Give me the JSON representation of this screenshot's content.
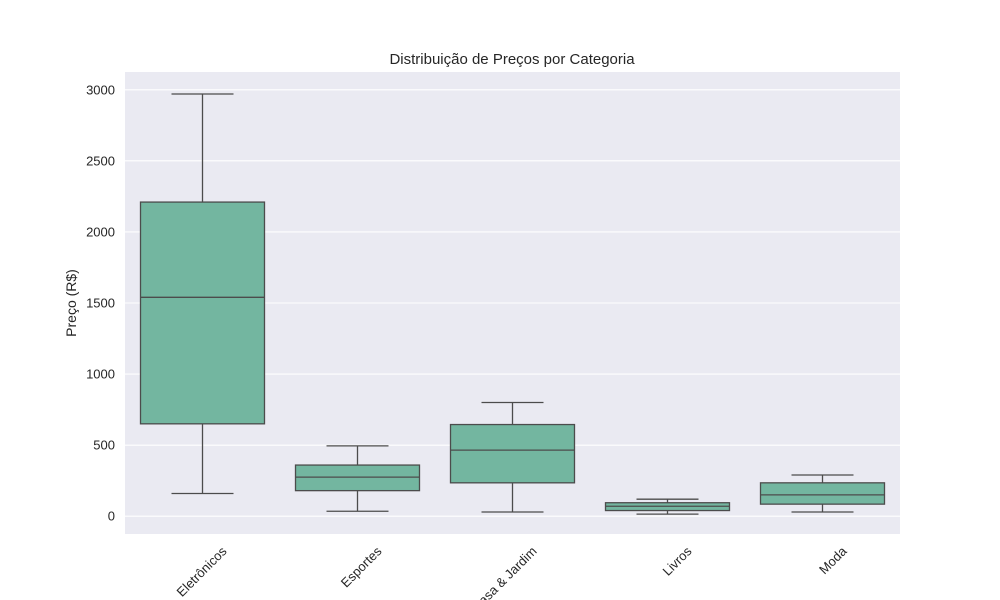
{
  "chart_data": {
    "type": "box",
    "title": "Distribuição de Preços por Categoria",
    "xlabel": "",
    "ylabel": "Preço (R$)",
    "ylim": [
      -125,
      3125
    ],
    "yticks": [
      0,
      500,
      1000,
      1500,
      2000,
      2500,
      3000
    ],
    "grid": true,
    "colors": {
      "plot_bg": "#eaeaf2",
      "grid": "#ffffff",
      "box_fill": "#73b6a0",
      "box_edge": "#4c4c4c"
    },
    "categories": [
      "Eletrônicos",
      "Esportes",
      "Casa & Jardim",
      "Livros",
      "Moda"
    ],
    "boxes": [
      {
        "category": "Eletrônicos",
        "whisker_low": 160,
        "q1": 650,
        "median": 1540,
        "q3": 2210,
        "whisker_high": 2970
      },
      {
        "category": "Esportes",
        "whisker_low": 35,
        "q1": 180,
        "median": 275,
        "q3": 360,
        "whisker_high": 495
      },
      {
        "category": "Casa & Jardim",
        "whisker_low": 30,
        "q1": 235,
        "median": 465,
        "q3": 645,
        "whisker_high": 800
      },
      {
        "category": "Livros",
        "whisker_low": 15,
        "q1": 40,
        "median": 70,
        "q3": 95,
        "whisker_high": 120
      },
      {
        "category": "Moda",
        "whisker_low": 30,
        "q1": 85,
        "median": 150,
        "q3": 235,
        "whisker_high": 290
      }
    ]
  }
}
